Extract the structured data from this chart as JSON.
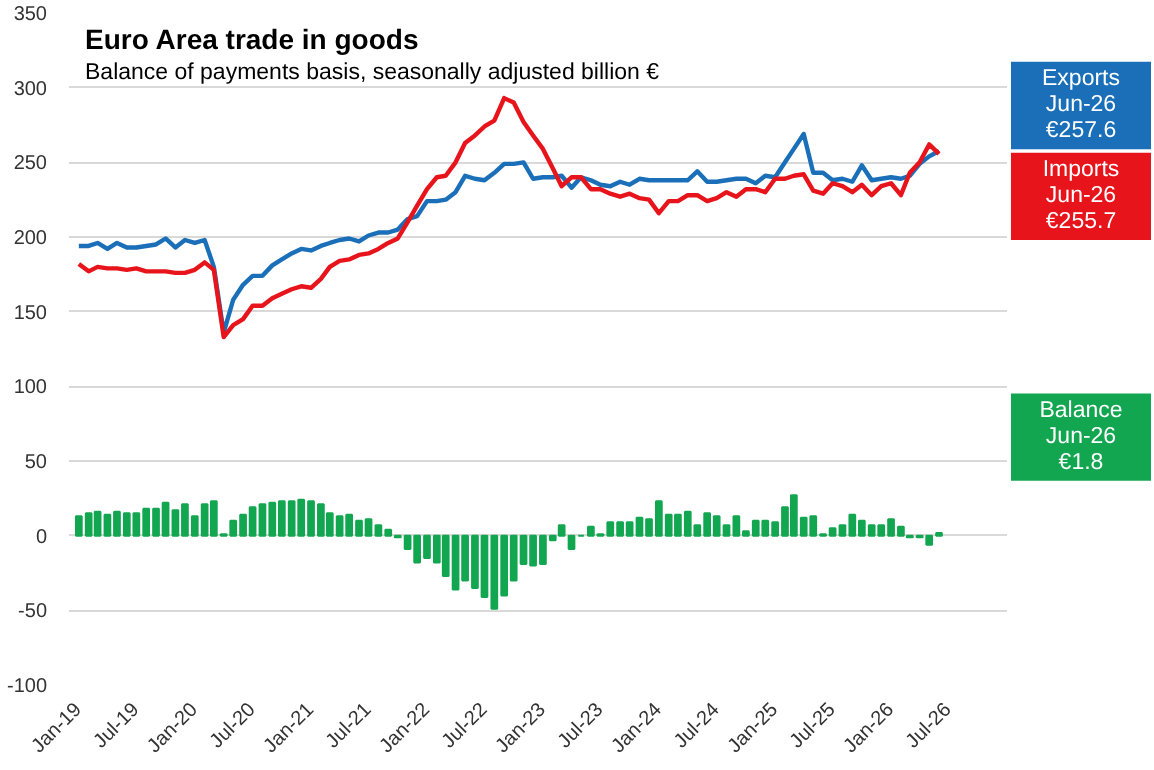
{
  "chart_data": {
    "type": "line",
    "title": "Euro Area trade in goods",
    "subtitle": "Balance of payments basis, seasonally adjusted billion €",
    "x": [
      "2019-01",
      "2019-02",
      "2019-03",
      "2019-04",
      "2019-05",
      "2019-06",
      "2019-07",
      "2019-08",
      "2019-09",
      "2019-10",
      "2019-11",
      "2019-12",
      "2020-01",
      "2020-02",
      "2020-03",
      "2020-04",
      "2020-05",
      "2020-06",
      "2020-07",
      "2020-08",
      "2020-09",
      "2020-10",
      "2020-11",
      "2020-12",
      "2021-01",
      "2021-02",
      "2021-03",
      "2021-04",
      "2021-05",
      "2021-06",
      "2021-07",
      "2021-08",
      "2021-09",
      "2021-10",
      "2021-11",
      "2021-12",
      "2022-01",
      "2022-02",
      "2022-03",
      "2022-04",
      "2022-05",
      "2022-06",
      "2022-07",
      "2022-08",
      "2022-09",
      "2022-10",
      "2022-11",
      "2022-12",
      "2023-01",
      "2023-02",
      "2023-03",
      "2023-04",
      "2023-05",
      "2023-06",
      "2023-07",
      "2023-08",
      "2023-09",
      "2023-10",
      "2023-11",
      "2023-12",
      "2024-01",
      "2024-02",
      "2024-03",
      "2024-04",
      "2024-05",
      "2024-06",
      "2024-07",
      "2024-08",
      "2024-09",
      "2024-10",
      "2024-11",
      "2024-12",
      "2025-01",
      "2025-02",
      "2025-03",
      "2025-04",
      "2025-05",
      "2025-06",
      "2025-07",
      "2025-08",
      "2025-09",
      "2025-10",
      "2025-11",
      "2025-12",
      "2026-01",
      "2026-02",
      "2026-03",
      "2026-04",
      "2026-05",
      "2026-06"
    ],
    "series": [
      {
        "name": "Exports",
        "color": "#1a6fb8",
        "values": [
          194,
          194,
          196,
          192,
          196,
          193,
          193,
          194,
          195,
          199,
          193,
          198,
          196,
          198,
          180,
          136,
          158,
          168,
          174,
          174,
          181,
          185,
          189,
          192,
          191,
          194,
          196,
          198,
          199,
          197,
          201,
          203,
          203,
          205,
          212,
          214,
          224,
          224,
          225,
          230,
          241,
          239,
          238,
          243,
          249,
          249,
          250,
          239,
          240,
          240,
          241,
          233,
          240,
          238,
          235,
          234,
          237,
          235,
          239,
          238,
          238,
          238,
          238,
          238,
          244,
          237,
          237,
          238,
          239,
          239,
          236,
          241,
          240,
          250,
          259,
          269,
          243,
          243,
          238,
          239,
          237,
          248,
          238,
          239,
          240,
          239,
          241,
          249,
          254,
          257.6
        ]
      },
      {
        "name": "Imports",
        "color": "#e8141b",
        "values": [
          182,
          177,
          180,
          179,
          179,
          178,
          179,
          177,
          177,
          177,
          176,
          176,
          178,
          183,
          178,
          133,
          141,
          145,
          154,
          154,
          159,
          162,
          165,
          167,
          166,
          172,
          180,
          184,
          185,
          188,
          189,
          192,
          196,
          199,
          210,
          221,
          232,
          240,
          241,
          250,
          263,
          268,
          274,
          278,
          293,
          290,
          277,
          268,
          259,
          246,
          234,
          240,
          240,
          232,
          232,
          229,
          227,
          229,
          226,
          225,
          216,
          224,
          224,
          228,
          228,
          224,
          226,
          230,
          227,
          232,
          232,
          230,
          239,
          239,
          241,
          242,
          231,
          229,
          236,
          234,
          230,
          235,
          228,
          234,
          236,
          228,
          243,
          250,
          262,
          255.7
        ]
      },
      {
        "name": "Balance",
        "color": "#12a650",
        "type": "bar",
        "values": [
          13,
          15,
          16,
          14,
          16,
          15,
          15,
          18,
          18,
          22,
          17,
          21,
          13,
          21,
          23,
          1,
          10,
          14,
          19,
          21,
          22,
          23,
          23,
          24,
          23,
          21,
          15,
          13,
          14,
          10,
          11,
          7,
          4,
          -1,
          -9,
          -18,
          -15,
          -18,
          -27,
          -36,
          -30,
          -35,
          -41,
          -49,
          -40,
          -30,
          -19,
          -20,
          -19,
          -3,
          7,
          -9,
          0,
          6,
          1,
          9,
          9,
          9,
          12,
          11,
          23,
          14,
          14,
          16,
          7,
          15,
          13,
          7,
          13,
          3,
          10,
          10,
          9,
          19,
          27,
          12,
          13,
          1,
          5,
          7,
          14,
          10,
          7,
          7,
          11,
          6,
          -1,
          -1,
          -6,
          1.8
        ]
      }
    ],
    "annotations": [
      "Jun-26\n€257.6",
      "Jun-26\n€255.7",
      "Jun-26\n€1.8"
    ],
    "xlim": [
      "2018-12",
      "2027-01"
    ],
    "xticks": [
      {
        "value": "2019-01",
        "label": "Jan-19"
      },
      {
        "value": "2019-07",
        "label": "Jul-19"
      },
      {
        "value": "2020-01",
        "label": "Jan-20"
      },
      {
        "value": "2020-07",
        "label": "Jul-20"
      },
      {
        "value": "2021-01",
        "label": "Jan-21"
      },
      {
        "value": "2021-07",
        "label": "Jul-21"
      },
      {
        "value": "2022-01",
        "label": "Jan-22"
      },
      {
        "value": "2022-07",
        "label": "Jul-22"
      },
      {
        "value": "2023-01",
        "label": "Jan-23"
      },
      {
        "value": "2023-07",
        "label": "Jul-23"
      },
      {
        "value": "2024-01",
        "label": "Jan-24"
      },
      {
        "value": "2024-07",
        "label": "Jul-24"
      },
      {
        "value": "2025-01",
        "label": "Jan-25"
      },
      {
        "value": "2025-07",
        "label": "Jul-25"
      },
      {
        "value": "2026-01",
        "label": "Jan-26"
      },
      {
        "value": "2026-07",
        "label": "Jul-26"
      }
    ],
    "ylim": [
      -100,
      350
    ],
    "yticks": [
      -100,
      -50,
      0,
      50,
      100,
      150,
      200,
      250,
      300,
      350
    ],
    "grid": "y",
    "marker": "none",
    "line_style": "solid"
  }
}
